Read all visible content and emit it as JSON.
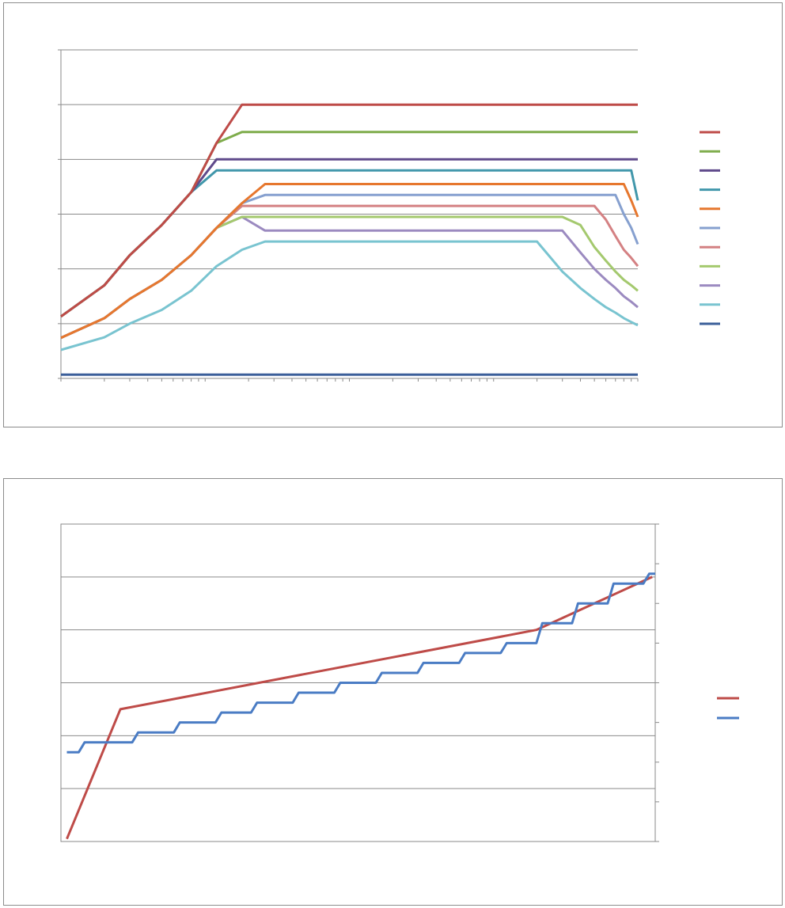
{
  "chart_data": [
    {
      "type": "line",
      "title": "",
      "xlabel": "",
      "ylabel": "",
      "xscale": "log",
      "xlim": [
        1,
        10000
      ],
      "ylim": [
        0,
        6
      ],
      "grid": true,
      "legend_position": "right",
      "x": [
        1,
        2,
        3,
        5,
        8,
        12,
        18,
        26,
        38,
        55,
        80,
        110,
        150,
        200,
        300,
        500,
        800,
        1200,
        2000,
        3000,
        4000,
        5000,
        6000,
        7000,
        8000,
        9000,
        10000
      ],
      "series": [
        {
          "color": "#be4b48",
          "values": [
            1.13,
            1.7,
            2.25,
            2.8,
            3.4,
            4.3,
            5.0,
            5.0,
            5.0,
            5.0,
            5.0,
            5.0,
            5.0,
            5.0,
            5.0,
            5.0,
            5.0,
            5.0,
            5.0,
            5.0,
            5.0,
            5.0,
            5.0,
            5.0,
            5.0,
            5.0,
            5.0
          ]
        },
        {
          "color": "#7eac4b",
          "values": [
            1.13,
            1.7,
            2.25,
            2.8,
            3.4,
            4.3,
            4.5,
            4.5,
            4.5,
            4.5,
            4.5,
            4.5,
            4.5,
            4.5,
            4.5,
            4.5,
            4.5,
            4.5,
            4.5,
            4.5,
            4.5,
            4.5,
            4.5,
            4.5,
            4.5,
            4.5,
            4.5
          ]
        },
        {
          "color": "#5f4a8b",
          "values": [
            1.13,
            1.7,
            2.25,
            2.8,
            3.4,
            4.0,
            4.0,
            4.0,
            4.0,
            4.0,
            4.0,
            4.0,
            4.0,
            4.0,
            4.0,
            4.0,
            4.0,
            4.0,
            4.0,
            4.0,
            4.0,
            4.0,
            4.0,
            4.0,
            4.0,
            4.0,
            4.0
          ]
        },
        {
          "color": "#4197ab",
          "values": [
            1.13,
            1.7,
            2.25,
            2.8,
            3.4,
            3.8,
            3.8,
            3.8,
            3.8,
            3.8,
            3.8,
            3.8,
            3.8,
            3.8,
            3.8,
            3.8,
            3.8,
            3.8,
            3.8,
            3.8,
            3.8,
            3.8,
            3.8,
            3.8,
            3.8,
            3.8,
            3.25
          ]
        },
        {
          "color": "#e6772e",
          "values": [
            0.74,
            1.1,
            1.45,
            1.8,
            2.25,
            2.75,
            3.2,
            3.55,
            3.55,
            3.55,
            3.55,
            3.55,
            3.55,
            3.55,
            3.55,
            3.55,
            3.55,
            3.55,
            3.55,
            3.55,
            3.55,
            3.55,
            3.55,
            3.55,
            3.55,
            3.25,
            2.95
          ]
        },
        {
          "color": "#86a0cf",
          "values": [
            0.74,
            1.1,
            1.45,
            1.8,
            2.25,
            2.75,
            3.2,
            3.35,
            3.35,
            3.35,
            3.35,
            3.35,
            3.35,
            3.35,
            3.35,
            3.35,
            3.35,
            3.35,
            3.35,
            3.35,
            3.35,
            3.35,
            3.35,
            3.35,
            3.0,
            2.75,
            2.45
          ]
        },
        {
          "color": "#d48183",
          "values": [
            0.74,
            1.1,
            1.45,
            1.8,
            2.25,
            2.75,
            3.15,
            3.15,
            3.15,
            3.15,
            3.15,
            3.15,
            3.15,
            3.15,
            3.15,
            3.15,
            3.15,
            3.15,
            3.15,
            3.15,
            3.15,
            3.15,
            2.9,
            2.6,
            2.35,
            2.2,
            2.05
          ]
        },
        {
          "color": "#a4c96e",
          "values": [
            0.74,
            1.1,
            1.45,
            1.8,
            2.25,
            2.75,
            2.95,
            2.95,
            2.95,
            2.95,
            2.95,
            2.95,
            2.95,
            2.95,
            2.95,
            2.95,
            2.95,
            2.95,
            2.95,
            2.95,
            2.8,
            2.4,
            2.15,
            1.95,
            1.8,
            1.7,
            1.6
          ]
        },
        {
          "color": "#9b8ac0",
          "values": [
            0.74,
            1.1,
            1.45,
            1.8,
            2.25,
            2.75,
            2.95,
            2.7,
            2.7,
            2.7,
            2.7,
            2.7,
            2.7,
            2.7,
            2.7,
            2.7,
            2.7,
            2.7,
            2.7,
            2.7,
            2.3,
            2.0,
            1.8,
            1.65,
            1.5,
            1.4,
            1.3
          ]
        },
        {
          "color": "#79c4d0",
          "values": [
            0.52,
            0.75,
            1.0,
            1.25,
            1.6,
            2.05,
            2.35,
            2.5,
            2.5,
            2.5,
            2.5,
            2.5,
            2.5,
            2.5,
            2.5,
            2.5,
            2.5,
            2.5,
            2.5,
            1.95,
            1.65,
            1.45,
            1.3,
            1.2,
            1.1,
            1.03,
            0.97
          ]
        },
        {
          "color": "#3b5f9a",
          "values": [
            0.07,
            0.07,
            0.07,
            0.07,
            0.07,
            0.07,
            0.07,
            0.07,
            0.07,
            0.07,
            0.07,
            0.07,
            0.07,
            0.07,
            0.07,
            0.07,
            0.07,
            0.07,
            0.07,
            0.07,
            0.07,
            0.07,
            0.07,
            0.07,
            0.07,
            0.07,
            0.07
          ]
        }
      ]
    },
    {
      "type": "line",
      "title": "",
      "xlabel": "",
      "ylabel": "",
      "xlim": [
        0,
        100
      ],
      "ylim": [
        0,
        6
      ],
      "y2lim": [
        0,
        8
      ],
      "grid": true,
      "legend_position": "right",
      "series": [
        {
          "color": "#be4b48",
          "axis": "left",
          "x": [
            1,
            10,
            80,
            99.5
          ],
          "values": [
            0.05,
            2.5,
            4.0,
            5.0
          ]
        },
        {
          "color": "#4a7cc4",
          "axis": "right",
          "steps": [
            {
              "x0": 1,
              "x1": 3,
              "value": 2.25
            },
            {
              "x0": 4,
              "x1": 12,
              "value": 2.5
            },
            {
              "x0": 13,
              "x1": 19,
              "value": 2.75
            },
            {
              "x0": 20,
              "x1": 26,
              "value": 3.0
            },
            {
              "x0": 27,
              "x1": 32,
              "value": 3.25
            },
            {
              "x0": 33,
              "x1": 39,
              "value": 3.5
            },
            {
              "x0": 40,
              "x1": 46,
              "value": 3.75
            },
            {
              "x0": 47,
              "x1": 53,
              "value": 4.0
            },
            {
              "x0": 54,
              "x1": 60,
              "value": 4.25
            },
            {
              "x0": 61,
              "x1": 67,
              "value": 4.5
            },
            {
              "x0": 68,
              "x1": 74,
              "value": 4.75
            },
            {
              "x0": 75,
              "x1": 80,
              "value": 5.0
            },
            {
              "x0": 81,
              "x1": 86,
              "value": 5.5
            },
            {
              "x0": 87,
              "x1": 92,
              "value": 6.0
            },
            {
              "x0": 93,
              "x1": 98,
              "value": 6.5
            },
            {
              "x0": 99,
              "x1": 100,
              "value": 6.75
            }
          ]
        }
      ]
    }
  ]
}
